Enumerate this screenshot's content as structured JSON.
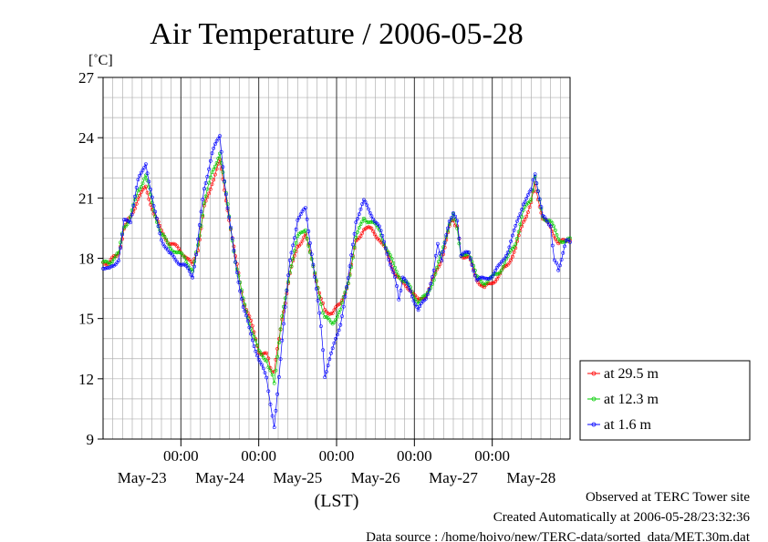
{
  "chart_data": {
    "type": "line",
    "title": "Air Temperature / 2006-05-28",
    "ylabel": "[˚C]",
    "xlabel": "(LST)",
    "ylim": [
      9,
      27
    ],
    "yticks": [
      9,
      12,
      15,
      18,
      21,
      24,
      27
    ],
    "xlim": [
      0,
      6
    ],
    "x_unit": "days since May-22 00:00",
    "time_ticks": [
      "00:00",
      "00:00",
      "00:00",
      "00:00",
      "00:00"
    ],
    "day_labels": [
      "May-23",
      "May-24",
      "May-25",
      "May-26",
      "May-27",
      "May-28"
    ],
    "grid": true,
    "legend_position": "right",
    "series": [
      {
        "name": "at 29.5 m",
        "color": "#ff0000",
        "points": [
          [
            0,
            17.8
          ],
          [
            0.08,
            17.8
          ],
          [
            0.2,
            18.2
          ],
          [
            0.27,
            19.5
          ],
          [
            0.35,
            20.0
          ],
          [
            0.45,
            21.0
          ],
          [
            0.55,
            21.5
          ],
          [
            0.65,
            20.3
          ],
          [
            0.75,
            19.3
          ],
          [
            0.85,
            18.8
          ],
          [
            0.95,
            18.5
          ],
          [
            1.05,
            18.2
          ],
          [
            1.15,
            17.6
          ],
          [
            1.22,
            18.5
          ],
          [
            1.3,
            20.5
          ],
          [
            1.4,
            21.8
          ],
          [
            1.5,
            22.8
          ],
          [
            1.6,
            20.5
          ],
          [
            1.7,
            18.0
          ],
          [
            1.8,
            16.0
          ],
          [
            1.9,
            14.8
          ],
          [
            2.0,
            13.4
          ],
          [
            2.1,
            13.2
          ],
          [
            2.15,
            12.6
          ],
          [
            2.2,
            12.3
          ],
          [
            2.3,
            15.0
          ],
          [
            2.4,
            17.2
          ],
          [
            2.5,
            18.6
          ],
          [
            2.6,
            19.2
          ],
          [
            2.7,
            17.6
          ],
          [
            2.8,
            16.0
          ],
          [
            2.85,
            15.4
          ],
          [
            2.95,
            15.3
          ],
          [
            3.05,
            15.7
          ],
          [
            3.15,
            16.8
          ],
          [
            3.25,
            18.8
          ],
          [
            3.35,
            19.5
          ],
          [
            3.45,
            19.4
          ],
          [
            3.55,
            19.0
          ],
          [
            3.65,
            18.2
          ],
          [
            3.75,
            17.3
          ],
          [
            3.85,
            16.7
          ],
          [
            3.95,
            16.5
          ],
          [
            4.05,
            15.8
          ],
          [
            4.15,
            16.2
          ],
          [
            4.25,
            17.0
          ],
          [
            4.35,
            18.0
          ],
          [
            4.45,
            19.5
          ],
          [
            4.5,
            20.0
          ],
          [
            4.55,
            19.5
          ],
          [
            4.6,
            18.2
          ],
          [
            4.7,
            18.0
          ],
          [
            4.8,
            17.0
          ],
          [
            4.9,
            16.5
          ],
          [
            5.0,
            16.8
          ],
          [
            5.1,
            17.2
          ],
          [
            5.2,
            17.7
          ],
          [
            5.3,
            18.5
          ],
          [
            5.4,
            19.8
          ],
          [
            5.5,
            20.8
          ],
          [
            5.55,
            21.7
          ],
          [
            5.65,
            20.0
          ],
          [
            5.75,
            19.5
          ],
          [
            5.85,
            18.8
          ],
          [
            5.95,
            18.8
          ],
          [
            6.0,
            18.9
          ]
        ]
      },
      {
        "name": "at 12.3 m",
        "color": "#00cc00",
        "points": [
          [
            0,
            17.7
          ],
          [
            0.08,
            17.8
          ],
          [
            0.2,
            18.2
          ],
          [
            0.27,
            19.6
          ],
          [
            0.35,
            20.0
          ],
          [
            0.45,
            21.4
          ],
          [
            0.55,
            22.1
          ],
          [
            0.65,
            20.4
          ],
          [
            0.75,
            19.2
          ],
          [
            0.85,
            18.6
          ],
          [
            0.95,
            18.3
          ],
          [
            1.05,
            18.0
          ],
          [
            1.15,
            17.4
          ],
          [
            1.22,
            18.6
          ],
          [
            1.3,
            20.8
          ],
          [
            1.4,
            22.2
          ],
          [
            1.5,
            23.3
          ],
          [
            1.6,
            20.6
          ],
          [
            1.7,
            17.9
          ],
          [
            1.8,
            15.9
          ],
          [
            1.9,
            14.6
          ],
          [
            2.0,
            13.3
          ],
          [
            2.1,
            13.0
          ],
          [
            2.15,
            12.3
          ],
          [
            2.2,
            11.9
          ],
          [
            2.3,
            15.0
          ],
          [
            2.4,
            17.4
          ],
          [
            2.5,
            19.0
          ],
          [
            2.6,
            19.5
          ],
          [
            2.7,
            17.5
          ],
          [
            2.8,
            15.8
          ],
          [
            2.85,
            15.0
          ],
          [
            2.95,
            14.8
          ],
          [
            3.05,
            15.4
          ],
          [
            3.15,
            16.8
          ],
          [
            3.25,
            19.0
          ],
          [
            3.35,
            20.0
          ],
          [
            3.45,
            19.8
          ],
          [
            3.55,
            19.4
          ],
          [
            3.65,
            18.4
          ],
          [
            3.75,
            17.5
          ],
          [
            3.85,
            16.9
          ],
          [
            3.95,
            16.5
          ],
          [
            4.05,
            15.8
          ],
          [
            4.15,
            16.1
          ],
          [
            4.25,
            17.0
          ],
          [
            4.35,
            18.2
          ],
          [
            4.45,
            19.8
          ],
          [
            4.5,
            20.1
          ],
          [
            4.55,
            19.6
          ],
          [
            4.6,
            18.0
          ],
          [
            4.7,
            18.4
          ],
          [
            4.8,
            17.0
          ],
          [
            4.9,
            16.8
          ],
          [
            5.0,
            17.0
          ],
          [
            5.1,
            17.4
          ],
          [
            5.2,
            18.0
          ],
          [
            5.3,
            18.8
          ],
          [
            5.4,
            20.3
          ],
          [
            5.5,
            21.0
          ],
          [
            5.55,
            22.0
          ],
          [
            5.65,
            20.1
          ],
          [
            5.75,
            19.8
          ],
          [
            5.85,
            19.0
          ],
          [
            5.95,
            18.8
          ],
          [
            6.0,
            19.0
          ]
        ]
      },
      {
        "name": "at 1.6 m",
        "color": "#0000ff",
        "points": [
          [
            0,
            17.6
          ],
          [
            0.08,
            17.4
          ],
          [
            0.2,
            18.0
          ],
          [
            0.27,
            19.8
          ],
          [
            0.35,
            19.9
          ],
          [
            0.45,
            21.8
          ],
          [
            0.55,
            22.8
          ],
          [
            0.65,
            20.5
          ],
          [
            0.75,
            19.0
          ],
          [
            0.85,
            18.2
          ],
          [
            0.95,
            17.9
          ],
          [
            1.05,
            17.6
          ],
          [
            1.15,
            17.1
          ],
          [
            1.22,
            18.9
          ],
          [
            1.3,
            21.5
          ],
          [
            1.4,
            23.2
          ],
          [
            1.5,
            24.1
          ],
          [
            1.6,
            20.5
          ],
          [
            1.7,
            17.8
          ],
          [
            1.8,
            15.6
          ],
          [
            1.9,
            14.2
          ],
          [
            2.0,
            13.0
          ],
          [
            2.1,
            12.0
          ],
          [
            2.15,
            10.8
          ],
          [
            2.2,
            9.5
          ],
          [
            2.3,
            14.0
          ],
          [
            2.4,
            17.8
          ],
          [
            2.5,
            20.0
          ],
          [
            2.6,
            20.4
          ],
          [
            2.7,
            17.8
          ],
          [
            2.8,
            14.5
          ],
          [
            2.85,
            12.2
          ],
          [
            2.95,
            13.4
          ],
          [
            3.05,
            14.8
          ],
          [
            3.15,
            16.9
          ],
          [
            3.25,
            19.9
          ],
          [
            3.35,
            20.8
          ],
          [
            3.45,
            20.2
          ],
          [
            3.55,
            19.5
          ],
          [
            3.65,
            18.3
          ],
          [
            3.75,
            17.0
          ],
          [
            3.8,
            16.0
          ],
          [
            3.85,
            17.0
          ],
          [
            3.95,
            16.4
          ],
          [
            4.05,
            15.4
          ],
          [
            4.15,
            16.0
          ],
          [
            4.25,
            17.4
          ],
          [
            4.3,
            18.7
          ],
          [
            4.35,
            17.9
          ],
          [
            4.45,
            19.8
          ],
          [
            4.5,
            20.3
          ],
          [
            4.55,
            19.8
          ],
          [
            4.6,
            18.2
          ],
          [
            4.7,
            18.2
          ],
          [
            4.8,
            17.0
          ],
          [
            4.9,
            16.9
          ],
          [
            5.0,
            17.2
          ],
          [
            5.1,
            17.6
          ],
          [
            5.2,
            18.4
          ],
          [
            5.3,
            19.5
          ],
          [
            5.4,
            20.8
          ],
          [
            5.5,
            21.3
          ],
          [
            5.55,
            22.3
          ],
          [
            5.65,
            20.0
          ],
          [
            5.75,
            19.7
          ],
          [
            5.8,
            17.8
          ],
          [
            5.85,
            17.5
          ],
          [
            5.95,
            18.8
          ],
          [
            6.0,
            18.8
          ]
        ]
      }
    ]
  },
  "notes": {
    "observed": "Observed at TERC Tower site",
    "created": "Created Automatically at 2006-05-28/23:32:36",
    "source": "Data source : /home/hoivo/new/TERC-data/sorted_data/MET.30m.dat"
  }
}
